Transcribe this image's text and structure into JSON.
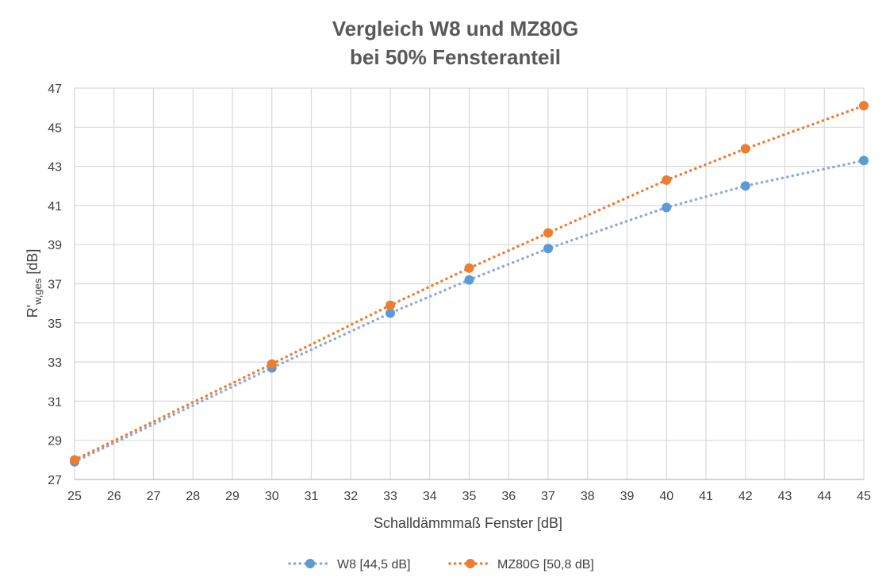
{
  "chart_data": {
    "type": "line",
    "title": [
      "Vergleich W8 und MZ80G",
      "bei 50% Fensteranteil"
    ],
    "xlabel": "Schalldämmmaß Fenster [dB]",
    "ylabel": {
      "main": "R'",
      "subscript": "w,ges",
      "unit": " [dB]"
    },
    "xlim": [
      25,
      45
    ],
    "ylim": [
      27,
      47
    ],
    "x_ticks": [
      25,
      26,
      27,
      28,
      29,
      30,
      31,
      32,
      33,
      34,
      35,
      36,
      37,
      38,
      39,
      40,
      41,
      42,
      43,
      44,
      45
    ],
    "y_ticks": [
      27,
      29,
      31,
      33,
      35,
      37,
      39,
      41,
      43,
      45,
      47
    ],
    "grid": true,
    "legend_position": "bottom",
    "series": [
      {
        "name": "W8 [44,5 dB]",
        "color": "#8ea9db",
        "marker_color": "#5b9bd5",
        "points": [
          {
            "x": 25,
            "y": 27.9
          },
          {
            "x": 30,
            "y": 32.7
          },
          {
            "x": 33,
            "y": 35.5
          },
          {
            "x": 35,
            "y": 37.2
          },
          {
            "x": 37,
            "y": 38.8
          },
          {
            "x": 40,
            "y": 40.9
          },
          {
            "x": 42,
            "y": 42.0
          },
          {
            "x": 45,
            "y": 43.3
          }
        ]
      },
      {
        "name": "MZ80G [50,8 dB]",
        "color": "#ed7d31",
        "marker_color": "#ed7d31",
        "points": [
          {
            "x": 25,
            "y": 28.0
          },
          {
            "x": 30,
            "y": 32.9
          },
          {
            "x": 33,
            "y": 35.9
          },
          {
            "x": 35,
            "y": 37.8
          },
          {
            "x": 37,
            "y": 39.6
          },
          {
            "x": 40,
            "y": 42.3
          },
          {
            "x": 42,
            "y": 43.9
          },
          {
            "x": 45,
            "y": 46.1
          }
        ]
      }
    ]
  }
}
